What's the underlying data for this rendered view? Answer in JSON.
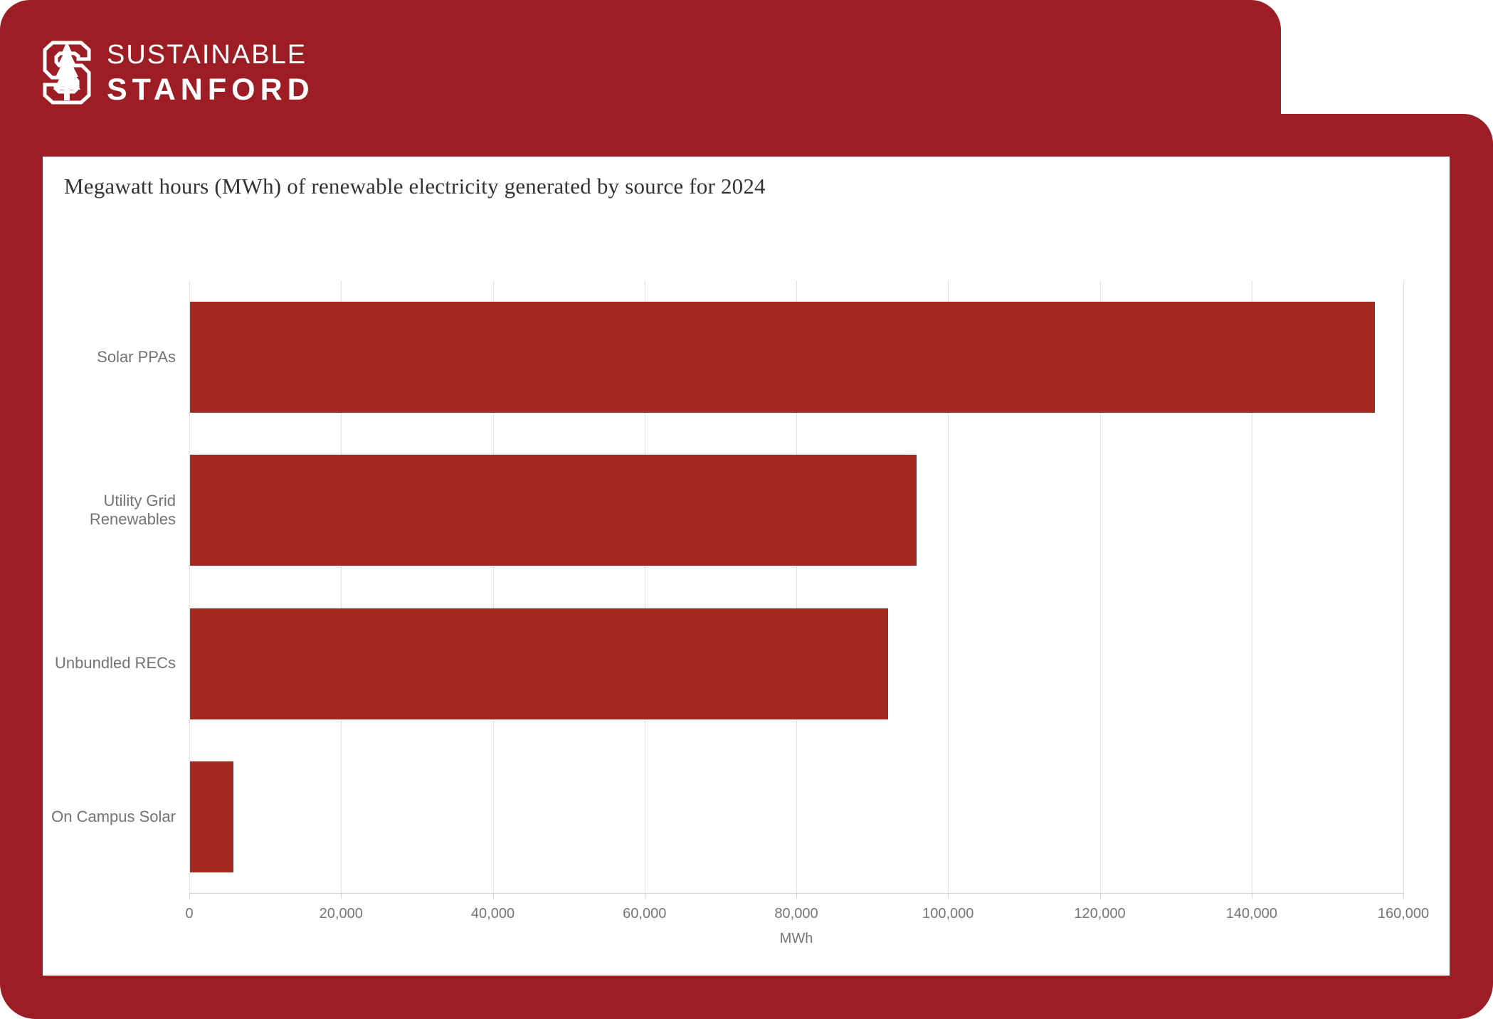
{
  "brand": {
    "line1": "SUSTAINABLE",
    "line2": "STANFORD",
    "logo": "stanford-s-tree"
  },
  "chart_data": {
    "type": "bar",
    "orientation": "horizontal",
    "title": "Megawatt hours (MWh) of renewable electricity generated by source for 2024",
    "categories": [
      "Solar PPAs",
      "Utility Grid Renewables",
      "Unbundled RECs",
      "On Campus Solar"
    ],
    "values": [
      156200,
      95800,
      92000,
      5700
    ],
    "xlabel": "MWh",
    "xlim": [
      0,
      160000
    ],
    "xticks": [
      0,
      20000,
      40000,
      60000,
      80000,
      100000,
      120000,
      140000,
      160000
    ],
    "xtick_labels": [
      "0",
      "20,000",
      "40,000",
      "60,000",
      "80,000",
      "100,000",
      "120,000",
      "140,000",
      "160,000"
    ],
    "grid": true,
    "legend": false
  },
  "colors": {
    "frame_red": "#9c1d24",
    "bar_red": "#a4291e",
    "card_bg": "#ffffff",
    "title_text": "#333333",
    "axis_text": "#757575",
    "label_text": "#737373",
    "gridline": "#e2e2e2",
    "axis_line": "#d4d4d4",
    "logo_white": "#ffffff"
  }
}
